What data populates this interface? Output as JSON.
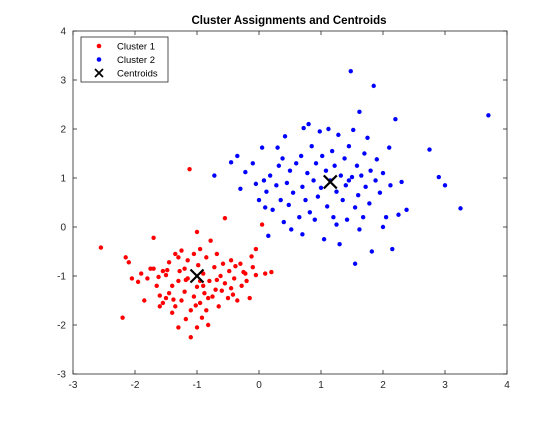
{
  "chart_data": {
    "type": "scatter",
    "title": "Cluster Assignments and Centroids",
    "xlabel": "",
    "ylabel": "",
    "xlim": [
      -3,
      4
    ],
    "ylim": [
      -3,
      4
    ],
    "xticks": [
      -3,
      -2,
      -1,
      0,
      1,
      2,
      3,
      4
    ],
    "yticks": [
      -3,
      -2,
      -1,
      0,
      1,
      2,
      3,
      4
    ],
    "grid": false,
    "legend_position": "top-left",
    "series": [
      {
        "name": "Cluster 1",
        "color": "#ff0000",
        "marker": "dot",
        "points": [
          [
            -2.55,
            -0.42
          ],
          [
            -2.2,
            -1.85
          ],
          [
            -2.15,
            -0.62
          ],
          [
            -2.1,
            -0.72
          ],
          [
            -2.05,
            -1.05
          ],
          [
            -1.95,
            -1.12
          ],
          [
            -1.9,
            -0.95
          ],
          [
            -1.85,
            -1.5
          ],
          [
            -1.8,
            -1.05
          ],
          [
            -1.75,
            -0.85
          ],
          [
            -1.7,
            -0.22
          ],
          [
            -1.7,
            -0.85
          ],
          [
            -1.65,
            -1.2
          ],
          [
            -1.6,
            -1.62
          ],
          [
            -1.6,
            -1.4
          ],
          [
            -1.55,
            -0.9
          ],
          [
            -1.55,
            -1.55
          ],
          [
            -1.5,
            -1.45
          ],
          [
            -1.5,
            -0.98
          ],
          [
            -1.45,
            -1.35
          ],
          [
            -1.45,
            -0.72
          ],
          [
            -1.4,
            -1.75
          ],
          [
            -1.4,
            -1.2
          ],
          [
            -1.35,
            -0.55
          ],
          [
            -1.35,
            -1.62
          ],
          [
            -1.3,
            -0.62
          ],
          [
            -1.3,
            -1.1
          ],
          [
            -1.3,
            -2.05
          ],
          [
            -1.25,
            -0.48
          ],
          [
            -1.25,
            -1.5
          ],
          [
            -1.2,
            -0.85
          ],
          [
            -1.2,
            -1.32
          ],
          [
            -1.18,
            -1.88
          ],
          [
            -1.15,
            -0.68
          ],
          [
            -1.15,
            -1.05
          ],
          [
            -1.12,
            1.18
          ],
          [
            -1.1,
            -2.25
          ],
          [
            -1.1,
            -1.7
          ],
          [
            -1.05,
            -1.42
          ],
          [
            -1.05,
            -0.55
          ],
          [
            -1.0,
            -0.1
          ],
          [
            -1.0,
            -1.22
          ],
          [
            -1.0,
            -2.05
          ],
          [
            -0.98,
            -0.78
          ],
          [
            -0.95,
            -1.55
          ],
          [
            -0.95,
            -0.45
          ],
          [
            -0.92,
            -1.85
          ],
          [
            -0.9,
            -1.2
          ],
          [
            -0.9,
            -0.95
          ],
          [
            -0.88,
            -1.35
          ],
          [
            -0.85,
            -0.62
          ],
          [
            -0.85,
            -1.7
          ],
          [
            -0.82,
            -2.0
          ],
          [
            -0.8,
            -1.1
          ],
          [
            -0.78,
            -0.28
          ],
          [
            -0.75,
            -1.42
          ],
          [
            -0.72,
            -0.82
          ],
          [
            -0.7,
            -1.28
          ],
          [
            -0.68,
            -0.55
          ],
          [
            -0.65,
            -1.62
          ],
          [
            -0.62,
            -1.0
          ],
          [
            -0.6,
            -1.3
          ],
          [
            -0.58,
            -0.75
          ],
          [
            -0.55,
            -1.15
          ],
          [
            -0.55,
            0.18
          ],
          [
            -0.5,
            -1.45
          ],
          [
            -0.48,
            -0.9
          ],
          [
            -0.45,
            -0.68
          ],
          [
            -0.42,
            -1.38
          ],
          [
            -0.4,
            -1.05
          ],
          [
            -0.38,
            -0.8
          ],
          [
            -0.35,
            -1.5
          ],
          [
            -0.3,
            -0.75
          ],
          [
            -0.28,
            -1.2
          ],
          [
            -0.25,
            -0.92
          ],
          [
            -0.22,
            -0.95
          ],
          [
            -0.2,
            -1.1
          ],
          [
            -0.15,
            -1.45
          ],
          [
            -0.12,
            -0.6
          ],
          [
            -0.1,
            -0.82
          ],
          [
            -0.05,
            -0.45
          ],
          [
            -0.05,
            -0.98
          ],
          [
            0.1,
            -0.95
          ],
          [
            0.05,
            0.05
          ],
          [
            0.2,
            -0.92
          ],
          [
            -1.48,
            -0.88
          ],
          [
            -1.28,
            -0.9
          ],
          [
            -1.02,
            -1.6
          ],
          [
            -0.82,
            -1.45
          ],
          [
            -1.18,
            -1.08
          ],
          [
            -0.68,
            -1.08
          ],
          [
            -0.45,
            -1.25
          ],
          [
            -1.62,
            -1.02
          ],
          [
            -1.38,
            -1.48
          ],
          [
            -0.95,
            -1.1
          ]
        ]
      },
      {
        "name": "Cluster 2",
        "color": "#0000ff",
        "marker": "dot",
        "points": [
          [
            -0.72,
            1.05
          ],
          [
            -0.45,
            1.32
          ],
          [
            -0.35,
            1.45
          ],
          [
            -0.3,
            0.78
          ],
          [
            -0.22,
            1.12
          ],
          [
            -0.1,
            1.3
          ],
          [
            -0.05,
            0.88
          ],
          [
            0.0,
            0.55
          ],
          [
            0.05,
            1.62
          ],
          [
            0.08,
            0.95
          ],
          [
            0.1,
            0.4
          ],
          [
            0.12,
            0.72
          ],
          [
            0.15,
            -0.18
          ],
          [
            0.18,
            1.05
          ],
          [
            0.22,
            0.35
          ],
          [
            0.28,
            0.85
          ],
          [
            0.32,
            1.25
          ],
          [
            0.35,
            0.55
          ],
          [
            0.38,
            1.4
          ],
          [
            0.4,
            0.1
          ],
          [
            0.42,
            1.85
          ],
          [
            0.45,
            0.9
          ],
          [
            0.48,
            0.45
          ],
          [
            0.5,
            1.15
          ],
          [
            0.52,
            -0.05
          ],
          [
            0.55,
            0.7
          ],
          [
            0.6,
            1.3
          ],
          [
            0.65,
            0.2
          ],
          [
            0.68,
            1.45
          ],
          [
            0.7,
            0.82
          ],
          [
            0.72,
            2.02
          ],
          [
            0.75,
            0.55
          ],
          [
            0.78,
            1.1
          ],
          [
            0.8,
            2.1
          ],
          [
            0.82,
            0.3
          ],
          [
            0.85,
            1.65
          ],
          [
            0.88,
            0.95
          ],
          [
            0.9,
            0.15
          ],
          [
            0.92,
            1.3
          ],
          [
            0.95,
            0.62
          ],
          [
            0.98,
            1.95
          ],
          [
            1.0,
            0.8
          ],
          [
            1.02,
            1.45
          ],
          [
            1.05,
            -0.25
          ],
          [
            1.08,
            1.15
          ],
          [
            1.1,
            0.42
          ],
          [
            1.12,
            2.0
          ],
          [
            1.15,
            0.95
          ],
          [
            1.18,
            1.55
          ],
          [
            1.2,
            0.2
          ],
          [
            1.22,
            1.25
          ],
          [
            1.25,
            0.72
          ],
          [
            1.28,
            1.88
          ],
          [
            1.3,
            -0.35
          ],
          [
            1.32,
            1.05
          ],
          [
            1.35,
            0.55
          ],
          [
            1.38,
            1.4
          ],
          [
            1.4,
            0.85
          ],
          [
            1.42,
            0.15
          ],
          [
            1.45,
            1.65
          ],
          [
            1.48,
            3.18
          ],
          [
            1.5,
            1.02
          ],
          [
            1.52,
            1.98
          ],
          [
            1.55,
            0.4
          ],
          [
            1.55,
            -0.75
          ],
          [
            1.58,
            1.25
          ],
          [
            1.6,
            0.65
          ],
          [
            1.62,
            2.35
          ],
          [
            1.65,
            1.05
          ],
          [
            1.68,
            0.2
          ],
          [
            1.7,
            1.5
          ],
          [
            1.72,
            0.82
          ],
          [
            1.75,
            1.82
          ],
          [
            1.78,
            0.48
          ],
          [
            1.8,
            1.15
          ],
          [
            1.82,
            -0.5
          ],
          [
            1.85,
            2.88
          ],
          [
            1.88,
            0.95
          ],
          [
            1.9,
            1.38
          ],
          [
            1.95,
            0.7
          ],
          [
            2.0,
            1.1
          ],
          [
            2.05,
            0.2
          ],
          [
            2.1,
            1.62
          ],
          [
            2.12,
            0.85
          ],
          [
            2.15,
            -0.45
          ],
          [
            2.2,
            2.2
          ],
          [
            2.25,
            0.25
          ],
          [
            2.3,
            0.92
          ],
          [
            2.38,
            0.35
          ],
          [
            2.75,
            1.58
          ],
          [
            2.9,
            1.02
          ],
          [
            3.0,
            0.85
          ],
          [
            3.25,
            0.38
          ],
          [
            3.7,
            2.28
          ],
          [
            1.62,
            -0.05
          ],
          [
            0.7,
            -0.15
          ],
          [
            1.25,
            0.05
          ],
          [
            2.0,
            0.0
          ],
          [
            0.3,
            1.62
          ],
          [
            1.45,
            0.95
          ]
        ]
      }
    ],
    "centroids": {
      "name": "Centroids",
      "color": "#000000",
      "marker": "x",
      "points": [
        [
          -1.0,
          -1.0
        ],
        [
          1.15,
          0.92
        ]
      ]
    }
  }
}
